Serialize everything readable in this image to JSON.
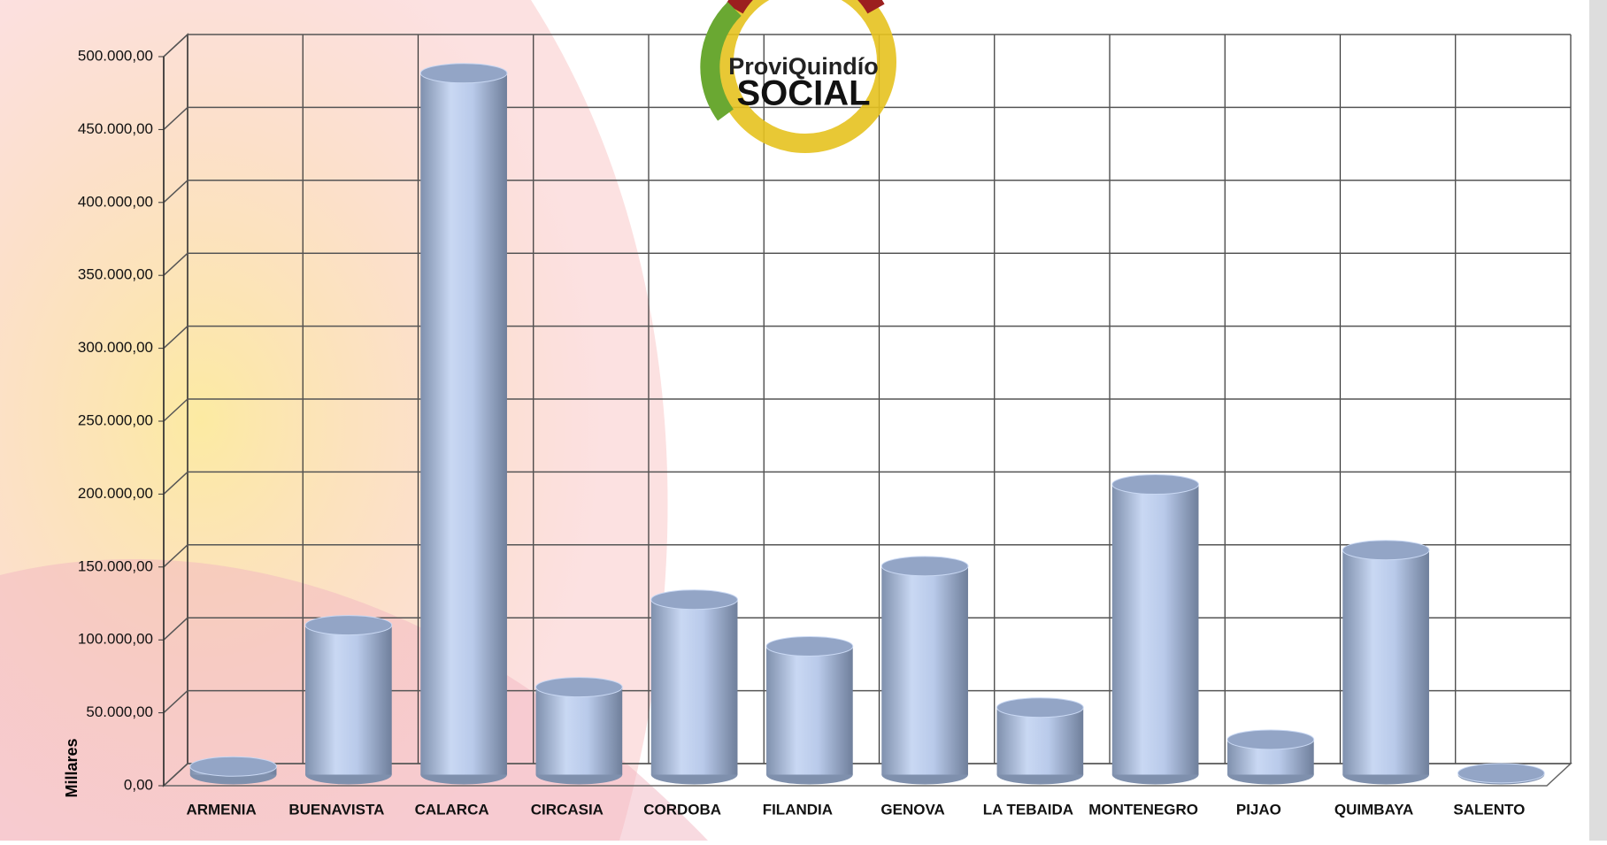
{
  "chart_data": {
    "type": "bar",
    "style": "3d-cylinder",
    "logo": [
      "ProviQuindío",
      "SOCIAL"
    ],
    "y_label": "Millares",
    "categories": [
      "ARMENIA",
      "BUENAVISTA",
      "CALARCA",
      "CIRCASIA",
      "CORDOBA",
      "FILANDIA",
      "GENOVA",
      "LA TEBAIDA",
      "MONTENEGRO",
      "PIJAO",
      "QUIMBAYA",
      "SALENTO"
    ],
    "values": [
      5600,
      102500,
      481000,
      60000,
      120000,
      88000,
      143000,
      46000,
      199000,
      24000,
      154000,
      1000
    ],
    "color": "#b4c6e7",
    "ylim": [
      0,
      500000
    ],
    "yticks": [
      {
        "value": 0,
        "label": "0,00"
      },
      {
        "value": 50000,
        "label": "50.000,00"
      },
      {
        "value": 100000,
        "label": "100.000,00"
      },
      {
        "value": 150000,
        "label": "150.000,00"
      },
      {
        "value": 200000,
        "label": "200.000,00"
      },
      {
        "value": 250000,
        "label": "250.000,00"
      },
      {
        "value": 300000,
        "label": "300.000,00"
      },
      {
        "value": 350000,
        "label": "350.000,00"
      },
      {
        "value": 400000,
        "label": "400.000,00"
      },
      {
        "value": 450000,
        "label": "450.000,00"
      },
      {
        "value": 500000,
        "label": "500.000,00"
      }
    ],
    "grid": true
  }
}
